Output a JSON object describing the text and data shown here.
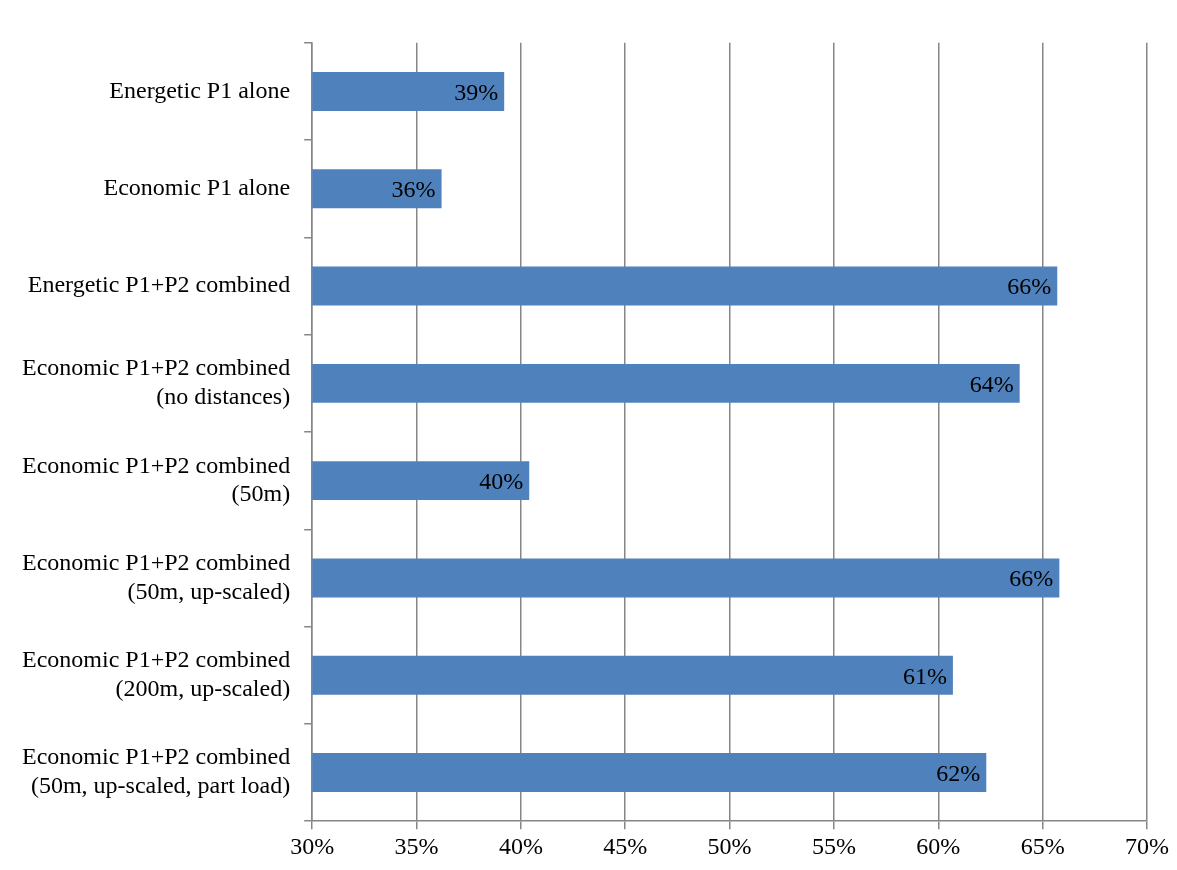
{
  "chart_data": {
    "type": "bar",
    "orientation": "horizontal",
    "categories": [
      "Energetic P1 alone",
      "Economic P1 alone",
      "Energetic P1+P2 combined",
      "Economic P1+P2 combined\n(no distances)",
      "Economic P1+P2 combined\n(50m)",
      "Economic P1+P2 combined\n(50m, up-scaled)",
      "Economic P1+P2 combined\n(200m, up-scaled)",
      "Economic P1+P2 combined\n(50m, up-scaled, part load)"
    ],
    "values": [
      39.2,
      36.2,
      65.7,
      63.9,
      40.4,
      65.8,
      60.7,
      62.3
    ],
    "value_labels": [
      "39%",
      "36%",
      "66%",
      "64%",
      "40%",
      "66%",
      "61%",
      "62%"
    ],
    "color": "#4f81bd",
    "xlim": [
      30,
      70
    ],
    "xticks": [
      {
        "value": 30,
        "label": "30%"
      },
      {
        "value": 35,
        "label": "35%"
      },
      {
        "value": 40,
        "label": "40%"
      },
      {
        "value": 45,
        "label": "45%"
      },
      {
        "value": 50,
        "label": "50%"
      },
      {
        "value": 55,
        "label": "55%"
      },
      {
        "value": 60,
        "label": "60%"
      },
      {
        "value": 65,
        "label": "65%"
      },
      {
        "value": 70,
        "label": "70%"
      }
    ],
    "grid": "x",
    "legend": false
  }
}
